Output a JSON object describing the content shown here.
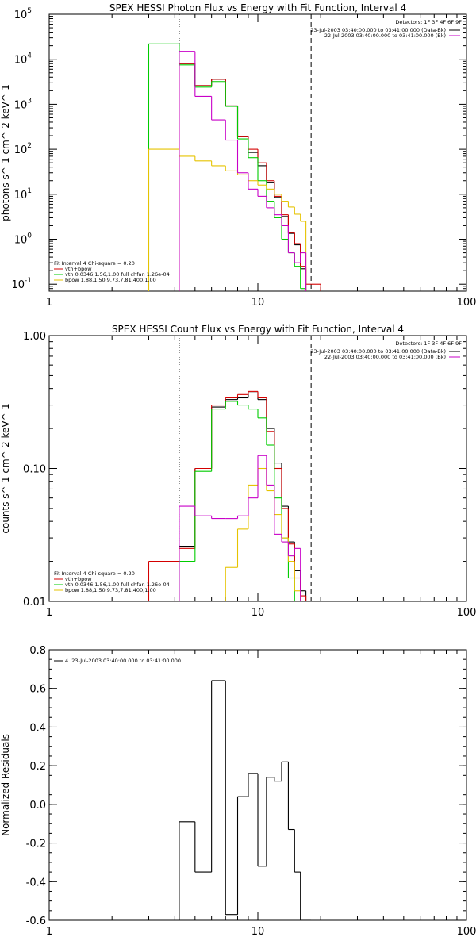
{
  "colors": {
    "total": "#000000",
    "fit_sum": "#d40000",
    "vth": "#00cc00",
    "bpow": "#e6c300",
    "background": "#c800c8"
  },
  "chart_data": [
    {
      "type": "line",
      "title": "SPEX HESSI Photon Flux vs Energy with Fit Function, Interval 4",
      "xlabel": "",
      "ylabel": "photons s^-1 cm^-2 keV^-1",
      "xscale": "log",
      "yscale": "log",
      "xlim": [
        1,
        100
      ],
      "ylim": [
        0.07,
        100000
      ],
      "xticks": [
        "1",
        "10",
        "100"
      ],
      "yticks": [
        {
          "value": 0.1,
          "base": "10",
          "exp": "-1"
        },
        {
          "value": 1,
          "base": "10",
          "exp": "0"
        },
        {
          "value": 10,
          "base": "10",
          "exp": "1"
        },
        {
          "value": 100,
          "base": "10",
          "exp": "2"
        },
        {
          "value": 1000,
          "base": "10",
          "exp": "3"
        },
        {
          "value": 10000,
          "base": "10",
          "exp": "4"
        },
        {
          "value": 100000,
          "base": "10",
          "exp": "5"
        }
      ],
      "detectors_label": "Detectors: 1F 3F 4F 6F 9F",
      "legend_right": [
        {
          "text": "23-Jul-2003 03:40:00.000 to 03:41:00.000 (Data-Bk)",
          "color": "#000000"
        },
        {
          "text": "22-Jul-2003 03:40:00.000 to 03:41:00.000 (Bk)",
          "color": "#c800c8"
        }
      ],
      "legend_left": [
        {
          "text": "Fit Interval 4   Chi-square = 0.20",
          "color": ""
        },
        {
          "text": "vth+bpow",
          "color": "#d40000"
        },
        {
          "text": "vth 0.0346,1.56,1.00  full chfan 1.26e-04",
          "color": "#00cc00"
        },
        {
          "text": "bpow 1.88,1.50,9.73,7.81,400,1.00",
          "color": "#e6c300"
        }
      ],
      "vlines": [
        {
          "x": 4.2,
          "style": "dotted"
        },
        {
          "x": 18.0,
          "style": "dashed"
        }
      ],
      "bin_edges": [
        3.0,
        4.2,
        5.0,
        6.0,
        7.0,
        8.0,
        9.0,
        10.0,
        11.0,
        12.0,
        13.0,
        14.0,
        15.0,
        16.0,
        17.0,
        18.0,
        20.0
      ],
      "series": [
        {
          "name": "Total",
          "color": "#000000",
          "values": [
            null,
            8000,
            2600,
            3600,
            920,
            190,
            85,
            43,
            18,
            8.5,
            3.2,
            1.35,
            0.75,
            0.22,
            null,
            null
          ]
        },
        {
          "name": "vth+bpow",
          "color": "#d40000",
          "values": [
            null,
            8000,
            2600,
            3600,
            920,
            190,
            100,
            50,
            20,
            9,
            3.5,
            1.4,
            0.8,
            0.25,
            0.1,
            0.1
          ]
        },
        {
          "name": "vth",
          "color": "#00cc00",
          "values": [
            22000,
            7500,
            2400,
            3200,
            900,
            170,
            65,
            20,
            7,
            3,
            1,
            0.5,
            0.25,
            0.08,
            null,
            null
          ]
        },
        {
          "name": "bpow",
          "color": "#e6c300",
          "values": [
            100,
            70,
            55,
            43,
            33,
            27,
            20,
            16,
            13,
            10,
            7,
            5.2,
            3.6,
            2.5,
            null,
            null
          ]
        },
        {
          "name": "Bk",
          "color": "#c800c8",
          "values": [
            null,
            15000,
            1500,
            450,
            160,
            30,
            13,
            9,
            5,
            3.5,
            2,
            0.5,
            0.3,
            0.5,
            null,
            null
          ]
        }
      ]
    },
    {
      "type": "line",
      "title": "SPEX HESSI Count Flux vs Energy with Fit Function, Interval 4",
      "xlabel": "",
      "ylabel": "counts s^-1 cm^-2 keV^-1",
      "xscale": "log",
      "yscale": "log",
      "xlim": [
        1,
        100
      ],
      "ylim": [
        0.01,
        1.0
      ],
      "xticks": [
        "1",
        "10",
        "100"
      ],
      "yticks": [
        {
          "value": 0.01,
          "label": "0.01"
        },
        {
          "value": 0.1,
          "label": "0.10"
        },
        {
          "value": 1.0,
          "label": "1.00"
        }
      ],
      "detectors_label": "Detectors: 1F 3F 4F 6F 9F",
      "legend_right": [
        {
          "text": "23-Jul-2003 03:40:00.000 to 03:41:00.000 (Data-Bk)",
          "color": "#000000"
        },
        {
          "text": "22-Jul-2003 03:40:00.000 to 03:41:00.000 (Bk)",
          "color": "#c800c8"
        }
      ],
      "legend_left": [
        {
          "text": "Fit Interval 4   Chi-square = 0.20",
          "color": ""
        },
        {
          "text": "vth+bpow",
          "color": "#d40000"
        },
        {
          "text": "vth 0.0346,1.56,1.00  full chfan 1.26e-04",
          "color": "#00cc00"
        },
        {
          "text": "bpow 1.88,1.50,9.73,7.81,400,1.00",
          "color": "#e6c300"
        }
      ],
      "vlines": [
        {
          "x": 4.2,
          "style": "dotted"
        },
        {
          "x": 18.0,
          "style": "dashed"
        }
      ],
      "bin_edges": [
        3.0,
        4.2,
        5.0,
        6.0,
        7.0,
        8.0,
        9.0,
        10.0,
        11.0,
        12.0,
        13.0,
        14.0,
        15.0,
        16.0,
        17.0,
        18.0,
        20.0
      ],
      "series": [
        {
          "name": "Total",
          "color": "#000000",
          "values": [
            null,
            0.026,
            0.1,
            0.29,
            0.33,
            0.34,
            0.37,
            0.33,
            0.2,
            0.11,
            0.052,
            0.028,
            0.017,
            0.012,
            null,
            null
          ]
        },
        {
          "name": "vth+bpow",
          "color": "#d40000",
          "values": [
            0.02,
            0.025,
            0.1,
            0.3,
            0.34,
            0.36,
            0.38,
            0.34,
            0.19,
            0.1,
            0.05,
            0.027,
            0.015,
            0.011,
            0.01,
            null
          ]
        },
        {
          "name": "vth",
          "color": "#00cc00",
          "values": [
            null,
            0.02,
            0.095,
            0.28,
            0.32,
            0.3,
            0.28,
            0.24,
            0.15,
            0.06,
            0.03,
            0.015,
            0.01,
            null,
            null,
            null
          ]
        },
        {
          "name": "bpow",
          "color": "#e6c300",
          "values": [
            null,
            null,
            null,
            null,
            0.018,
            0.035,
            0.075,
            0.1,
            0.068,
            0.045,
            0.03,
            0.02,
            0.012,
            null,
            null,
            null
          ]
        },
        {
          "name": "Bk",
          "color": "#c800c8",
          "values": [
            null,
            0.052,
            0.044,
            0.042,
            0.042,
            0.044,
            0.06,
            0.125,
            0.075,
            0.032,
            0.028,
            0.022,
            0.025,
            null,
            null,
            null
          ]
        }
      ]
    },
    {
      "type": "line",
      "title": "",
      "xlabel": "",
      "ylabel": "Normalized Residuals",
      "xscale": "log",
      "yscale": "linear",
      "xlim": [
        1,
        100
      ],
      "ylim": [
        -0.6,
        0.8
      ],
      "xticks": [
        "1",
        "10",
        "100"
      ],
      "yticks": [
        {
          "value": -0.6,
          "label": "-0.6"
        },
        {
          "value": -0.4,
          "label": "-0.4"
        },
        {
          "value": -0.2,
          "label": "-0.2"
        },
        {
          "value": 0.0,
          "label": "0.0"
        },
        {
          "value": 0.2,
          "label": "0.2"
        },
        {
          "value": 0.4,
          "label": "0.4"
        },
        {
          "value": 0.6,
          "label": "0.6"
        },
        {
          "value": 0.8,
          "label": "0.8"
        }
      ],
      "legend_left": [
        {
          "text": "4. 23-Jul-2003 03:40:00.000 to 03:41:00.000",
          "color": "#000000"
        }
      ],
      "bin_edges": [
        4.2,
        5.0,
        6.0,
        7.0,
        8.0,
        9.0,
        10.0,
        11.0,
        12.0,
        13.0,
        14.0,
        15.0,
        16.0,
        17.0,
        18.0
      ],
      "series": [
        {
          "name": "Residuals",
          "color": "#000000",
          "values": [
            -0.09,
            -0.35,
            0.64,
            -0.57,
            0.04,
            0.16,
            -0.32,
            0.14,
            0.12,
            0.22,
            -0.13,
            -0.35,
            -0.6,
            -0.6
          ]
        }
      ]
    }
  ]
}
